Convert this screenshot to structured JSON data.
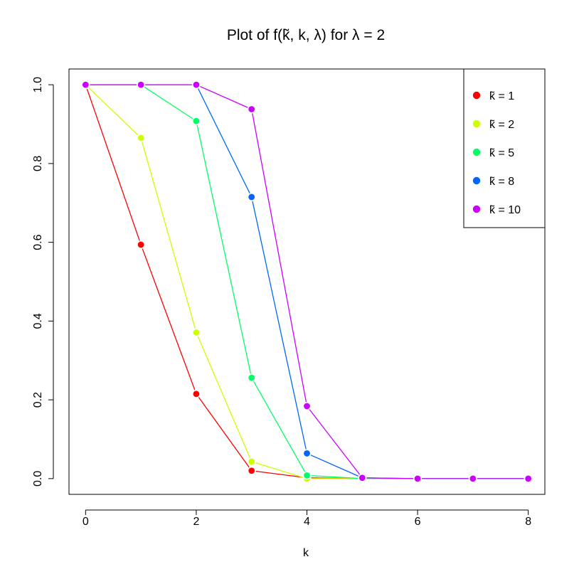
{
  "chart_data": {
    "type": "line",
    "title": "Plot of  f(k̃, k, λ)  for  λ = 2",
    "xlabel": "k",
    "ylabel": "",
    "xlim": [
      -0.3,
      8.3
    ],
    "ylim": [
      -0.04,
      1.04
    ],
    "x_ticks": [
      "0",
      "2",
      "4",
      "6",
      "8"
    ],
    "y_ticks": [
      "0.0",
      "0.2",
      "0.4",
      "0.6",
      "0.8",
      "1.0"
    ],
    "grid": false,
    "legend_position": "top-right",
    "x": [
      0,
      1,
      2,
      3,
      4,
      5,
      6,
      7,
      8
    ],
    "series": [
      {
        "name": "k̃ = 1",
        "color": "#ff0000",
        "values": [
          1.0,
          0.594,
          0.215,
          0.02,
          0.002,
          0.0,
          0.0,
          0.0,
          0.0
        ]
      },
      {
        "name": "k̃ = 2",
        "color": "#ccff00",
        "values": [
          1.0,
          0.865,
          0.371,
          0.043,
          0.0,
          0.0,
          0.0,
          0.0,
          0.0
        ]
      },
      {
        "name": "k̃ = 5",
        "color": "#00ff66",
        "values": [
          1.0,
          1.0,
          0.908,
          0.256,
          0.008,
          0.0,
          0.0,
          0.0,
          0.0
        ]
      },
      {
        "name": "k̃ = 8",
        "color": "#0066ff",
        "values": [
          1.0,
          1.0,
          1.0,
          0.715,
          0.064,
          0.002,
          0.0,
          0.0,
          0.0
        ]
      },
      {
        "name": "k̃ = 10",
        "color": "#cc00ff",
        "values": [
          1.0,
          1.0,
          1.0,
          0.938,
          0.184,
          0.002,
          0.0,
          0.0,
          0.0
        ]
      }
    ]
  }
}
